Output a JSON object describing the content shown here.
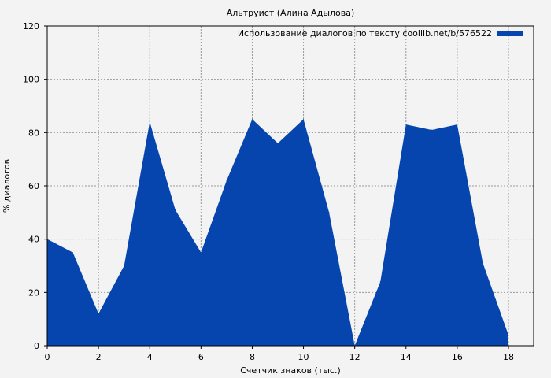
{
  "chart_data": {
    "type": "area",
    "title": "Альтруист (Алина Адылова)",
    "xlabel": "Счетчик знаков (тыс.)",
    "ylabel": "% диалогов",
    "xlim": [
      0,
      19
    ],
    "ylim": [
      0,
      120
    ],
    "xticks": [
      0,
      2,
      4,
      6,
      8,
      10,
      12,
      14,
      16,
      18
    ],
    "yticks": [
      0,
      20,
      40,
      60,
      80,
      100,
      120
    ],
    "grid": true,
    "legend_position": "top-right",
    "series": [
      {
        "name": "Использование диалогов по тексту coollib.net/b/576522",
        "color": "#0645ad",
        "x": [
          0,
          1,
          2,
          3,
          4,
          5,
          6,
          7,
          8,
          9,
          10,
          11,
          12,
          13,
          14,
          15,
          16,
          17,
          18
        ],
        "values": [
          40,
          35,
          12,
          30,
          84,
          51,
          35,
          62,
          85,
          76,
          85,
          50,
          0,
          24,
          83,
          81,
          83,
          31,
          4
        ]
      }
    ]
  }
}
